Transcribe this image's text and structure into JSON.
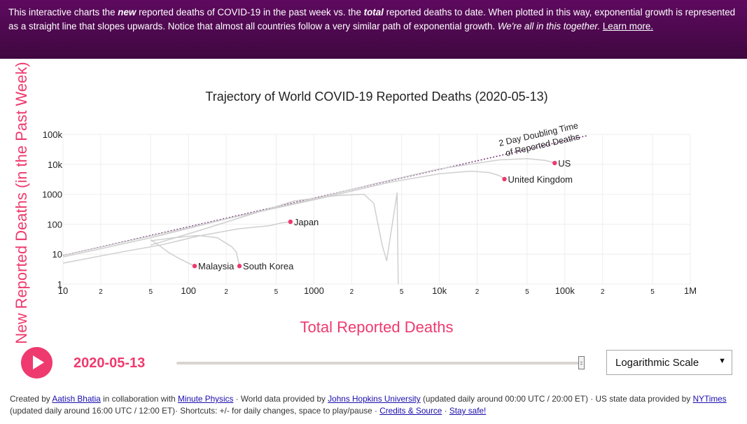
{
  "banner": {
    "p1": "This interactive charts the ",
    "em1": "new",
    "p2": " reported deaths of COVID-19 in the past week vs. the ",
    "em2": "total",
    "p3": " reported deaths to date. When plotted in this way, exponential growth is represented as a straight line that slopes upwards. Notice that almost all countries follow a very similar path of exponential growth. ",
    "em3": "We're all in this together.",
    "p4": " ",
    "link": "Learn more."
  },
  "chart_data": {
    "type": "line",
    "title": "Trajectory of World COVID-19 Reported Deaths (2020-05-13)",
    "xlabel": "Total Reported Deaths",
    "ylabel": "New Reported Deaths (in the Past Week)",
    "x_scale": "log",
    "y_scale": "log",
    "xlim": [
      10,
      1000000
    ],
    "ylim": [
      1,
      100000
    ],
    "grid": true,
    "x_ticks": [
      {
        "v": 10,
        "label": "10"
      },
      {
        "v": 20,
        "label": "2"
      },
      {
        "v": 50,
        "label": "5"
      },
      {
        "v": 100,
        "label": "100"
      },
      {
        "v": 200,
        "label": "2"
      },
      {
        "v": 500,
        "label": "5"
      },
      {
        "v": 1000,
        "label": "1000"
      },
      {
        "v": 2000,
        "label": "2"
      },
      {
        "v": 5000,
        "label": "5"
      },
      {
        "v": 10000,
        "label": "10k"
      },
      {
        "v": 20000,
        "label": "2"
      },
      {
        "v": 50000,
        "label": "5"
      },
      {
        "v": 100000,
        "label": "100k"
      },
      {
        "v": 200000,
        "label": "2"
      },
      {
        "v": 500000,
        "label": "5"
      },
      {
        "v": 1000000,
        "label": "1M"
      }
    ],
    "y_ticks": [
      {
        "v": 1,
        "label": "1"
      },
      {
        "v": 10,
        "label": "10"
      },
      {
        "v": 100,
        "label": "100"
      },
      {
        "v": 1000,
        "label": "1000"
      },
      {
        "v": 10000,
        "label": "10k"
      },
      {
        "v": 100000,
        "label": "100k"
      }
    ],
    "reference_line": {
      "label_line1": "2 Day Doubling Time",
      "label_line2": "of Reported Deaths",
      "points": [
        [
          10,
          9
        ],
        [
          150000,
          90000
        ]
      ]
    },
    "series": [
      {
        "name": "US",
        "points": [
          [
            10,
            9
          ],
          [
            50,
            40
          ],
          [
            200,
            150
          ],
          [
            1000,
            700
          ],
          [
            3000,
            2200
          ],
          [
            10000,
            7000
          ],
          [
            30000,
            14000
          ],
          [
            50000,
            15500
          ],
          [
            70000,
            13500
          ],
          [
            83000,
            11000
          ]
        ],
        "current": [
          83000,
          11000
        ]
      },
      {
        "name": "United Kingdom",
        "points": [
          [
            10,
            8
          ],
          [
            50,
            35
          ],
          [
            200,
            150
          ],
          [
            1000,
            650
          ],
          [
            4000,
            2500
          ],
          [
            10000,
            4800
          ],
          [
            18000,
            5900
          ],
          [
            25000,
            5300
          ],
          [
            30000,
            4200
          ],
          [
            33000,
            3200
          ]
        ],
        "current": [
          33000,
          3200
        ]
      },
      {
        "name": "Japan",
        "points": [
          [
            10,
            5
          ],
          [
            30,
            12
          ],
          [
            60,
            20
          ],
          [
            120,
            40
          ],
          [
            250,
            70
          ],
          [
            450,
            90
          ],
          [
            550,
            110
          ],
          [
            650,
            120
          ]
        ],
        "current": [
          650,
          120
        ]
      },
      {
        "name": "Malaysia",
        "points": [
          [
            50,
            30
          ],
          [
            60,
            18
          ],
          [
            70,
            11
          ],
          [
            85,
            7
          ],
          [
            100,
            5
          ],
          [
            112,
            4
          ]
        ],
        "current": [
          112,
          4
        ]
      },
      {
        "name": "South Korea",
        "points": [
          [
            50,
            28
          ],
          [
            80,
            36
          ],
          [
            120,
            42
          ],
          [
            170,
            35
          ],
          [
            220,
            18
          ],
          [
            240,
            12
          ],
          [
            255,
            4
          ]
        ],
        "current": [
          255,
          4
        ]
      },
      {
        "name": "",
        "points": [
          [
            50,
            20
          ],
          [
            120,
            60
          ],
          [
            300,
            200
          ],
          [
            700,
            600
          ],
          [
            1500,
            900
          ],
          [
            2500,
            1000
          ],
          [
            3000,
            500
          ],
          [
            3500,
            20
          ],
          [
            3800,
            6
          ],
          [
            4600,
            1100
          ],
          [
            4700,
            1
          ]
        ],
        "current": null
      }
    ]
  },
  "controls": {
    "date": "2020-05-13",
    "scale_selected": "Logarithmic Scale",
    "caret": "▼",
    "slider_progress": 1.0
  },
  "footer": {
    "t1": "Created by ",
    "author": "Aatish Bhatia",
    "t2": " in collaboration with ",
    "collab": "Minute Physics",
    "t3": " · World data provided by ",
    "jhu": "Johns Hopkins University",
    "t4": " (updated daily around 00:00 UTC / 20:00 ET) · US state data provided by ",
    "nyt": "NYTimes",
    "t5": " (updated daily around 16:00 UTC / 12:00 ET)· Shortcuts: +/- for daily changes, space to play/pause · ",
    "credits": "Credits & Source",
    "t6": " · ",
    "safe": "Stay safe!"
  },
  "colors": {
    "banner_top": "#5e0a5f",
    "accent": "#ee3a6e",
    "line": "#cfcfcf",
    "reference": "#7b3a7d",
    "grid": "#eeeeee"
  }
}
